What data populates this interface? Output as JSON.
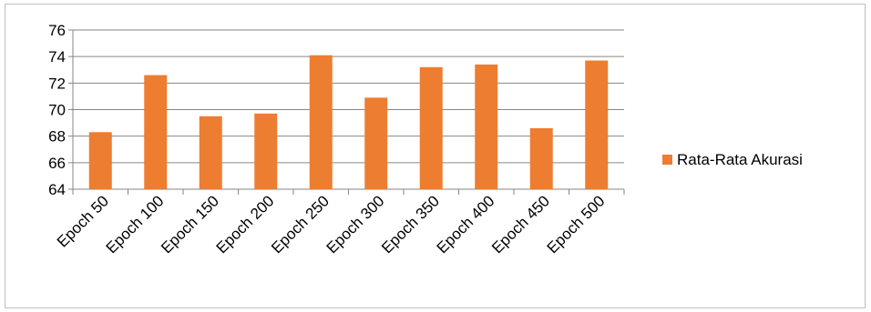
{
  "chart_data": {
    "type": "bar",
    "categories": [
      "Epoch 50",
      "Epoch 100",
      "Epoch 150",
      "Epoch 200",
      "Epoch 250",
      "Epoch 300",
      "Epoch 350",
      "Epoch 400",
      "Epoch 450",
      "Epoch 500"
    ],
    "series": [
      {
        "name": "Rata-Rata Akurasi",
        "color": "#ED7D31",
        "values": [
          68.3,
          72.6,
          69.5,
          69.7,
          74.1,
          70.9,
          73.2,
          73.4,
          68.6,
          73.7
        ]
      }
    ],
    "ylim": [
      64,
      76
    ],
    "yticks": [
      64,
      66,
      68,
      70,
      72,
      74,
      76
    ],
    "grid": true,
    "legend_position": "right"
  }
}
